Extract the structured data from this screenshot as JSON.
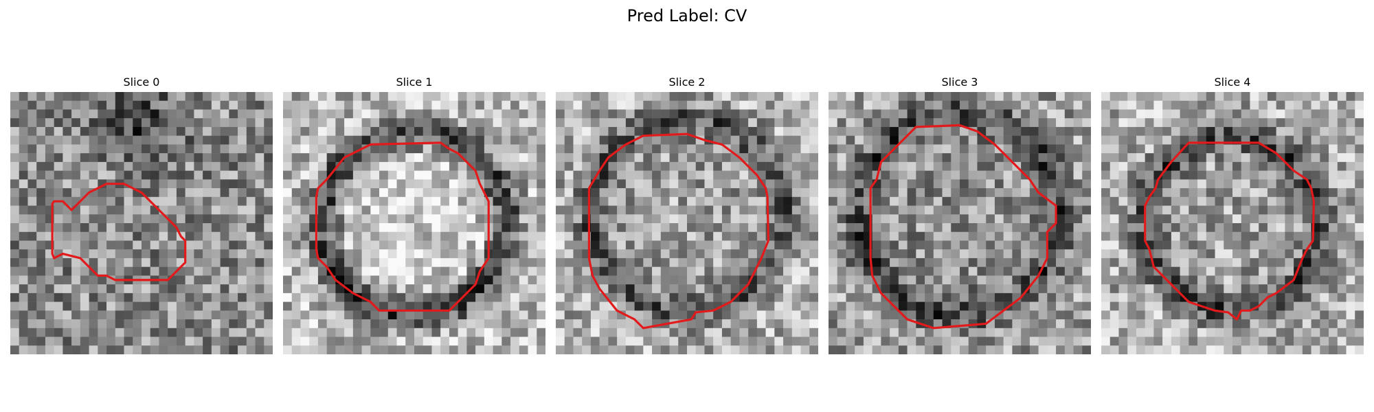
{
  "figure": {
    "title": "Pred Label: CV"
  },
  "panels": [
    {
      "title": "Slice 0",
      "contour_color": "#e31a1c"
    },
    {
      "title": "Slice 1",
      "contour_color": "#e31a1c"
    },
    {
      "title": "Slice 2",
      "contour_color": "#e31a1c"
    },
    {
      "title": "Slice 3",
      "contour_color": "#e31a1c"
    },
    {
      "title": "Slice 4",
      "contour_color": "#e31a1c"
    }
  ]
}
